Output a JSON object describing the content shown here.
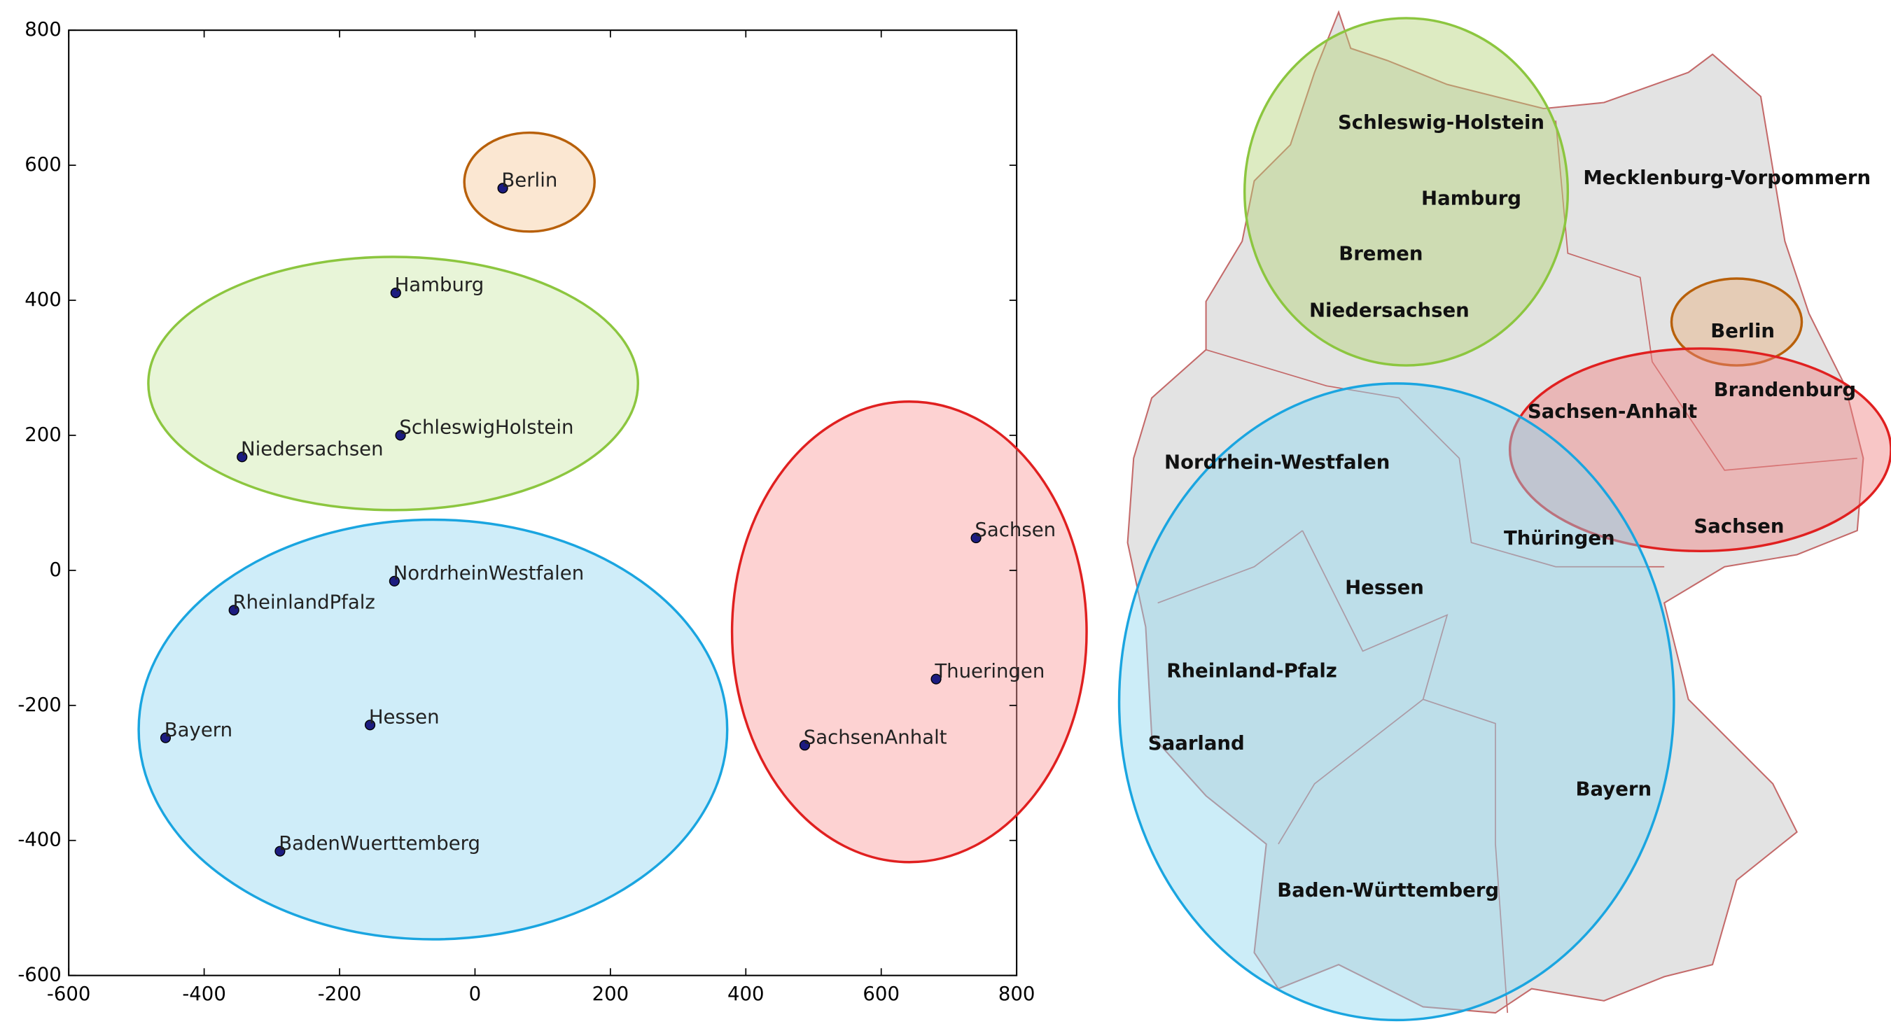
{
  "chart_data": {
    "type": "scatter",
    "labels": [
      "Berlin",
      "Hamburg",
      "SchleswigHolstein",
      "Niedersachsen",
      "Sachsen",
      "NordrheinWestfalen",
      "RheinlandPfalz",
      "Thueringen",
      "Hessen",
      "Bayern",
      "SachsenAnhalt",
      "BadenWuerttemberg"
    ],
    "x": [
      41,
      -117,
      -110,
      -344,
      740,
      -119,
      -356,
      681,
      -155,
      -457,
      487,
      -288
    ],
    "values": [
      566,
      411,
      200,
      168,
      48,
      -16,
      -59,
      -161,
      -229,
      -248,
      -259,
      -416
    ],
    "color": "#1c1c80",
    "xlim": [
      -600,
      800
    ],
    "ylim": [
      -600,
      800
    ],
    "xticks": [
      -600,
      -400,
      -200,
      0,
      200,
      400,
      600,
      800
    ],
    "yticks": [
      -600,
      -400,
      -200,
      0,
      200,
      400,
      600,
      800
    ]
  },
  "map": {
    "labels": [
      "Schleswig-Holstein",
      "Hamburg",
      "Mecklenburg-Vorpommern",
      "Bremen",
      "Niedersachsen",
      "Berlin",
      "Brandenburg",
      "Sachsen-Anhalt",
      "Nordrhein-Westfalen",
      "Thüringen",
      "Sachsen",
      "Hessen",
      "Rheinland-Pfalz",
      "Saarland",
      "Bayern",
      "Baden-Württemberg"
    ]
  }
}
